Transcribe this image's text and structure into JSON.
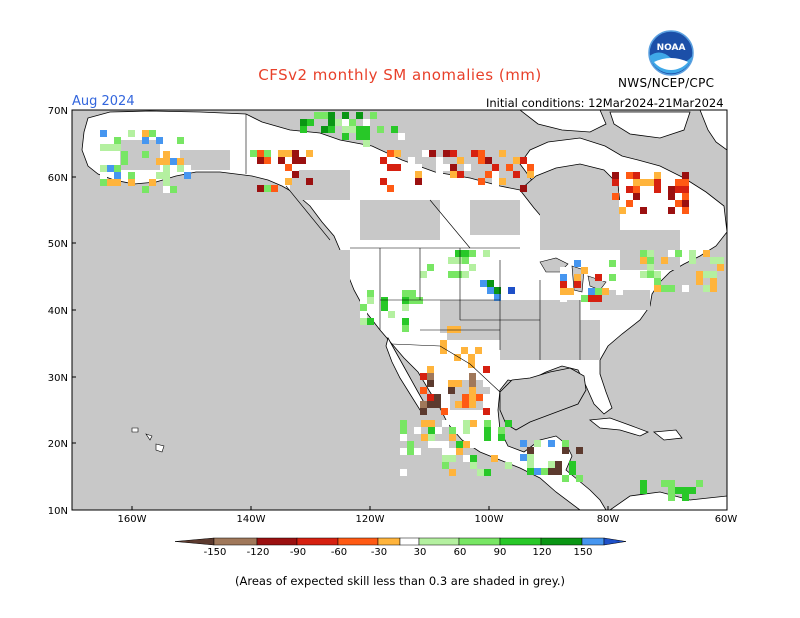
{
  "header": {
    "title": "CFSv2 monthly SM anomalies (mm)",
    "valid_month": "Aug 2024",
    "initial_conditions": "Initial conditions: 12Mar2024-21Mar2024",
    "agency": "NWS/NCEP/CPC",
    "logo_text": "NOAA"
  },
  "map": {
    "lat_labels": [
      "70N",
      "60N",
      "50N",
      "40N",
      "30N",
      "20N",
      "10N"
    ],
    "lon_labels": [
      "160W",
      "140W",
      "120W",
      "100W",
      "80W",
      "60W"
    ],
    "extent": {
      "lon_min": -170,
      "lon_max": -60,
      "lat_min": 10,
      "lat_max": 70
    },
    "grey_meaning": "expected skill < 0.3",
    "colors": {
      "ocean": "#c8c8c8",
      "land": "#ffffff",
      "low_skill": "#c8c8c8",
      "coast": "#000000"
    }
  },
  "colorbar": {
    "tick_labels": [
      "-150",
      "-120",
      "-90",
      "-60",
      "-30",
      "30",
      "60",
      "90",
      "120",
      "150"
    ],
    "bins": [
      {
        "range": "< -150",
        "color": "#5c3a2e"
      },
      {
        "range": "-150 to -120",
        "color": "#a0785a"
      },
      {
        "range": "-120 to -90",
        "color": "#9b1010"
      },
      {
        "range": "-90 to -60",
        "color": "#d62010"
      },
      {
        "range": "-60 to -30",
        "color": "#ff5a14"
      },
      {
        "range": "-30 to -15",
        "color": "#ffb43c"
      },
      {
        "range": "-15 to 15",
        "color": "#ffffff"
      },
      {
        "range": "15 to 30",
        "color": "#b4f0a0"
      },
      {
        "range": "30 to 60",
        "color": "#78e664"
      },
      {
        "range": "60 to 90",
        "color": "#28c828"
      },
      {
        "range": "90 to 120",
        "color": "#0a9614"
      },
      {
        "range": "120 to 150",
        "color": "#4696f0"
      },
      {
        "range": "> 150",
        "color": "#1e50c8"
      }
    ]
  },
  "footnote": "(Areas of expected skill less than 0.3 are shaded in grey.)"
}
